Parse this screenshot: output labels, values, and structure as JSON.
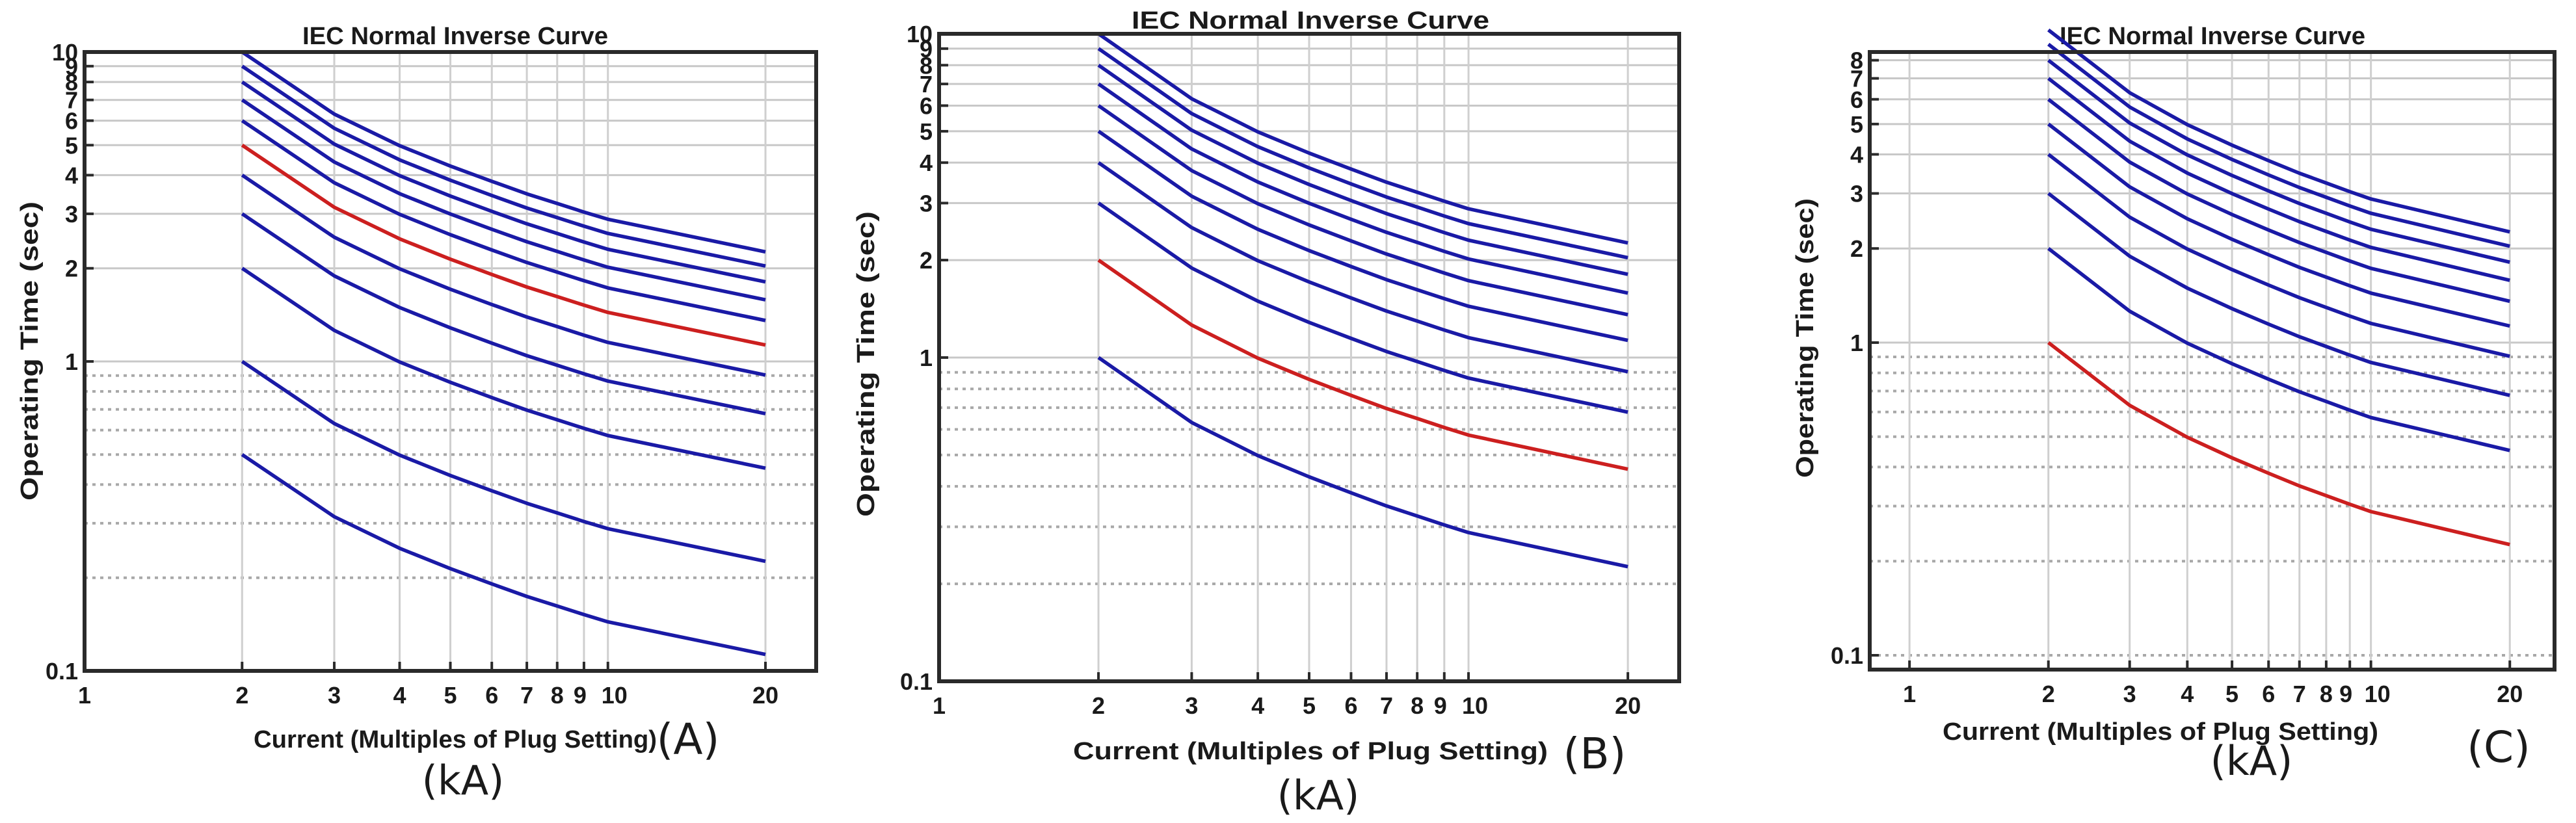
{
  "chart_data": [
    {
      "panel_label": "(A)",
      "unit_label": "(kA)",
      "type": "line",
      "title": "IEC Normal Inverse Curve",
      "xlabel": "Current (Multiples of Plug Setting)",
      "ylabel": "Operating Time (sec)",
      "xscale": "log",
      "yscale": "log",
      "xlim": [
        1,
        25
      ],
      "ylim": [
        0.1,
        10
      ],
      "x_ticks": [
        1,
        2,
        3,
        4,
        5,
        6,
        7,
        8,
        9,
        10,
        20
      ],
      "x_tick_labels": [
        "1",
        "2",
        "3",
        "4",
        "5",
        "6",
        "7",
        "8",
        "9",
        "10",
        "20"
      ],
      "y_ticks": [
        0.1,
        1,
        2,
        3,
        4,
        5,
        6,
        7,
        8,
        9,
        10
      ],
      "y_tick_labels": [
        "0.1",
        "1",
        "2",
        "3",
        "4",
        "5",
        "6",
        "7",
        "8",
        "9",
        "10"
      ],
      "grid": true,
      "x": [
        2,
        3,
        4,
        5,
        6,
        7,
        8,
        9,
        10,
        20
      ],
      "highlight_color": "#cc1f1f",
      "base_color": "#1a1aa6",
      "series": [
        {
          "values": [
            0.5,
            0.315,
            0.249,
            0.214,
            0.191,
            0.174,
            0.162,
            0.152,
            0.144,
            0.113
          ]
        },
        {
          "values": [
            1.0,
            0.63,
            0.498,
            0.428,
            0.382,
            0.348,
            0.324,
            0.304,
            0.288,
            0.226
          ]
        },
        {
          "values": [
            2.0,
            1.26,
            0.996,
            0.856,
            0.764,
            0.696,
            0.648,
            0.608,
            0.576,
            0.452
          ]
        },
        {
          "values": [
            3.0,
            1.89,
            1.494,
            1.284,
            1.146,
            1.044,
            0.972,
            0.912,
            0.864,
            0.678
          ]
        },
        {
          "values": [
            4.0,
            2.52,
            1.992,
            1.712,
            1.528,
            1.392,
            1.296,
            1.216,
            1.152,
            0.904
          ]
        },
        {
          "values": [
            5.0,
            3.15,
            2.49,
            2.14,
            1.91,
            1.74,
            1.62,
            1.52,
            1.44,
            1.13
          ],
          "highlight": true
        },
        {
          "values": [
            6.0,
            3.78,
            2.988,
            2.568,
            2.292,
            2.088,
            1.944,
            1.824,
            1.728,
            1.356
          ]
        },
        {
          "values": [
            7.0,
            4.41,
            3.486,
            2.996,
            2.674,
            2.436,
            2.268,
            2.128,
            2.016,
            1.582
          ]
        },
        {
          "values": [
            8.0,
            5.04,
            3.984,
            3.424,
            3.056,
            2.784,
            2.592,
            2.432,
            2.304,
            1.808
          ]
        },
        {
          "values": [
            9.0,
            5.67,
            4.482,
            3.852,
            3.438,
            3.132,
            2.916,
            2.736,
            2.592,
            2.034
          ]
        },
        {
          "values": [
            10.0,
            6.3,
            4.98,
            4.28,
            3.82,
            3.48,
            3.24,
            3.04,
            2.88,
            2.26
          ]
        }
      ]
    },
    {
      "panel_label": "(B)",
      "unit_label": "(kA)",
      "type": "line",
      "title": "IEC Normal Inverse Curve",
      "xlabel": "Current (Multiples of Plug Setting)",
      "ylabel": "Operating Time (sec)",
      "xscale": "log",
      "yscale": "log",
      "xlim": [
        1,
        25
      ],
      "ylim": [
        0.1,
        10
      ],
      "x_ticks": [
        1,
        2,
        3,
        4,
        5,
        6,
        7,
        8,
        9,
        10,
        20
      ],
      "x_tick_labels": [
        "1",
        "2",
        "3",
        "4",
        "5",
        "6",
        "7",
        "8",
        "9",
        "10",
        "20"
      ],
      "y_ticks": [
        0.1,
        1,
        2,
        3,
        4,
        5,
        6,
        7,
        8,
        9,
        10
      ],
      "y_tick_labels": [
        "0.1",
        "1",
        "2",
        "3",
        "4",
        "5",
        "6",
        "7",
        "8",
        "9",
        "10"
      ],
      "grid": true,
      "x": [
        2,
        3,
        4,
        5,
        6,
        7,
        8,
        9,
        10,
        20
      ],
      "highlight_color": "#cc1f1f",
      "base_color": "#1a1aa6",
      "series": [
        {
          "values": [
            1.0,
            0.63,
            0.498,
            0.428,
            0.382,
            0.348,
            0.324,
            0.304,
            0.288,
            0.226
          ]
        },
        {
          "values": [
            2.0,
            1.26,
            0.996,
            0.856,
            0.764,
            0.696,
            0.648,
            0.608,
            0.576,
            0.452
          ],
          "highlight": true
        },
        {
          "values": [
            3.0,
            1.89,
            1.494,
            1.284,
            1.146,
            1.044,
            0.972,
            0.912,
            0.864,
            0.678
          ]
        },
        {
          "values": [
            4.0,
            2.52,
            1.992,
            1.712,
            1.528,
            1.392,
            1.296,
            1.216,
            1.152,
            0.904
          ]
        },
        {
          "values": [
            5.0,
            3.15,
            2.49,
            2.14,
            1.91,
            1.74,
            1.62,
            1.52,
            1.44,
            1.13
          ]
        },
        {
          "values": [
            6.0,
            3.78,
            2.988,
            2.568,
            2.292,
            2.088,
            1.944,
            1.824,
            1.728,
            1.356
          ]
        },
        {
          "values": [
            7.0,
            4.41,
            3.486,
            2.996,
            2.674,
            2.436,
            2.268,
            2.128,
            2.016,
            1.582
          ]
        },
        {
          "values": [
            8.0,
            5.04,
            3.984,
            3.424,
            3.056,
            2.784,
            2.592,
            2.432,
            2.304,
            1.808
          ]
        },
        {
          "values": [
            9.0,
            5.67,
            4.482,
            3.852,
            3.438,
            3.132,
            2.916,
            2.736,
            2.592,
            2.034
          ]
        },
        {
          "values": [
            10.0,
            6.3,
            4.98,
            4.28,
            3.82,
            3.48,
            3.24,
            3.04,
            2.88,
            2.26
          ]
        }
      ]
    },
    {
      "panel_label": "(C)",
      "unit_label": "(kA)",
      "type": "line",
      "title": "IEC Normal Inverse Curve",
      "xlabel": "Current (Multiples of Plug Setting)",
      "ylabel": "Operating Time (sec)",
      "xscale": "log",
      "yscale": "log",
      "xlim": [
        0.82,
        25
      ],
      "ylim": [
        0.09,
        8.5
      ],
      "x_ticks": [
        1,
        2,
        3,
        4,
        5,
        6,
        7,
        8,
        9,
        10,
        20
      ],
      "x_tick_labels": [
        "1",
        "2",
        "3",
        "4",
        "5",
        "6",
        "7",
        "8",
        "9",
        "10",
        "20"
      ],
      "y_ticks": [
        0.1,
        1,
        2,
        3,
        4,
        5,
        6,
        7,
        8
      ],
      "y_tick_labels": [
        "0.1",
        "1",
        "2",
        "3",
        "4",
        "5",
        "6",
        "7",
        "8"
      ],
      "grid": true,
      "x": [
        2,
        3,
        4,
        5,
        6,
        7,
        8,
        9,
        10,
        20
      ],
      "highlight_color": "#cc1f1f",
      "base_color": "#1a1aa6",
      "series": [
        {
          "values": [
            1.0,
            0.63,
            0.498,
            0.428,
            0.382,
            0.348,
            0.324,
            0.304,
            0.288,
            0.226
          ],
          "highlight": true
        },
        {
          "values": [
            2.0,
            1.26,
            0.996,
            0.856,
            0.764,
            0.696,
            0.648,
            0.608,
            0.576,
            0.452
          ]
        },
        {
          "values": [
            3.0,
            1.89,
            1.494,
            1.284,
            1.146,
            1.044,
            0.972,
            0.912,
            0.864,
            0.678
          ]
        },
        {
          "values": [
            4.0,
            2.52,
            1.992,
            1.712,
            1.528,
            1.392,
            1.296,
            1.216,
            1.152,
            0.904
          ]
        },
        {
          "values": [
            5.0,
            3.15,
            2.49,
            2.14,
            1.91,
            1.74,
            1.62,
            1.52,
            1.44,
            1.13
          ]
        },
        {
          "values": [
            6.0,
            3.78,
            2.988,
            2.568,
            2.292,
            2.088,
            1.944,
            1.824,
            1.728,
            1.356
          ]
        },
        {
          "values": [
            7.0,
            4.41,
            3.486,
            2.996,
            2.674,
            2.436,
            2.268,
            2.128,
            2.016,
            1.582
          ]
        },
        {
          "values": [
            8.0,
            5.04,
            3.984,
            3.424,
            3.056,
            2.784,
            2.592,
            2.432,
            2.304,
            1.808
          ]
        },
        {
          "values": [
            9.0,
            5.67,
            4.482,
            3.852,
            3.438,
            3.132,
            2.916,
            2.736,
            2.592,
            2.034
          ]
        },
        {
          "values": [
            10.0,
            6.3,
            4.98,
            4.28,
            3.82,
            3.48,
            3.24,
            3.04,
            2.88,
            2.26
          ]
        }
      ]
    }
  ]
}
